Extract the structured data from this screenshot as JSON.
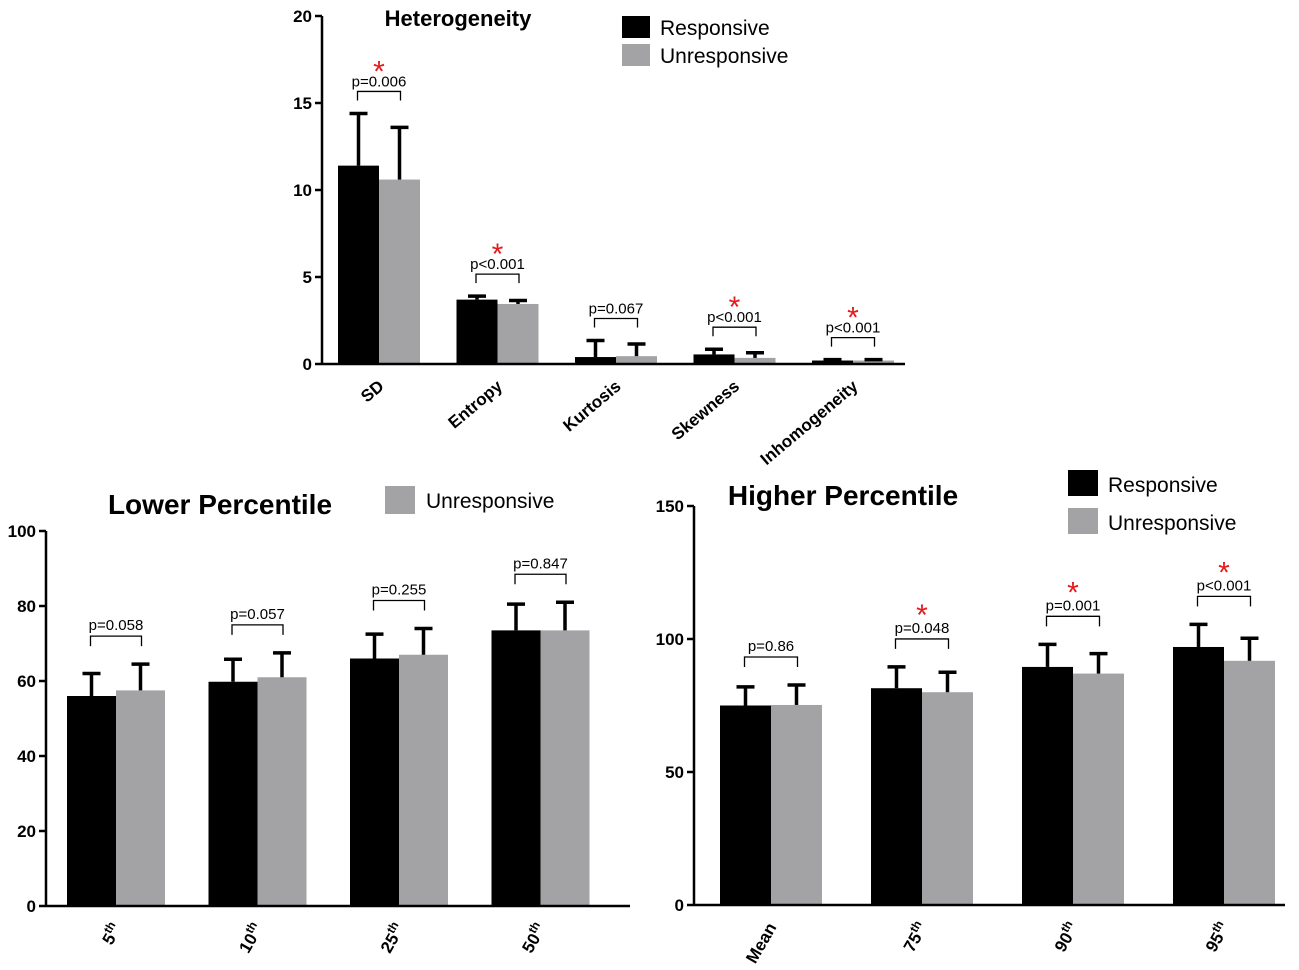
{
  "colors": {
    "responsive": "#000000",
    "unresponsive": "#a3a3a6",
    "significance": "#e41a1c"
  },
  "chart_data": [
    {
      "id": "heterogeneity",
      "type": "bar",
      "title": "Heterogeneity",
      "legend": [
        "Responsive",
        "Unresponsive"
      ],
      "legend_position": "top-right",
      "categories": [
        "SD",
        "Entropy",
        "Kurtosis",
        "Skewness",
        "Inhomogeneity"
      ],
      "ylim": [
        0,
        20
      ],
      "yticks": [
        "0",
        "5",
        "10",
        "15",
        "20"
      ],
      "series": [
        {
          "name": "Responsive",
          "values": [
            11.4,
            3.7,
            0.4,
            0.55,
            0.2
          ],
          "errors": [
            3.0,
            0.2,
            0.95,
            0.3,
            0.05
          ]
        },
        {
          "name": "Unresponsive",
          "values": [
            10.6,
            3.45,
            0.45,
            0.35,
            0.2
          ],
          "errors": [
            3.0,
            0.2,
            0.7,
            0.3,
            0.05
          ]
        }
      ],
      "annotations": [
        {
          "category": "SD",
          "label": "p=0.006",
          "significant": true
        },
        {
          "category": "Entropy",
          "label": "p<0.001",
          "significant": true
        },
        {
          "category": "Kurtosis",
          "label": "p=0.067",
          "significant": false
        },
        {
          "category": "Skewness",
          "label": "p<0.001",
          "significant": true
        },
        {
          "category": "Inhomogeneity",
          "label": "p<0.001",
          "significant": true
        }
      ],
      "star": "*"
    },
    {
      "id": "lower",
      "type": "bar",
      "title": "Lower Percentile",
      "legend": [
        "Unresponsive"
      ],
      "legend_position": "top-right",
      "categories": [
        "5",
        "10",
        "25",
        "50"
      ],
      "category_superscript": "th",
      "ylim": [
        0,
        100
      ],
      "yticks": [
        "0",
        "20",
        "40",
        "60",
        "80",
        "100"
      ],
      "series": [
        {
          "name": "Responsive",
          "values": [
            56,
            59.8,
            66,
            73.5
          ],
          "errors": [
            6,
            6,
            6.5,
            7
          ]
        },
        {
          "name": "Unresponsive",
          "values": [
            57.5,
            61,
            67,
            73.5
          ],
          "errors": [
            7,
            6.5,
            7,
            7.5
          ]
        }
      ],
      "annotations": [
        {
          "category": "5",
          "label": "p=0.058",
          "significant": false
        },
        {
          "category": "10",
          "label": "p=0.057",
          "significant": false
        },
        {
          "category": "25",
          "label": "p=0.255",
          "significant": false
        },
        {
          "category": "50",
          "label": "p=0.847",
          "significant": false
        }
      ]
    },
    {
      "id": "higher",
      "type": "bar",
      "title": "Higher Percentile",
      "legend": [
        "Responsive",
        "Unresponsive"
      ],
      "legend_position": "top-right",
      "categories": [
        "Mean",
        "75",
        "90",
        "95"
      ],
      "category_superscript": [
        "",
        "th",
        "th",
        "th"
      ],
      "ylim": [
        0,
        150
      ],
      "yticks": [
        "0",
        "50",
        "100",
        "150"
      ],
      "series": [
        {
          "name": "Responsive",
          "values": [
            75,
            81.5,
            89.5,
            97
          ],
          "errors": [
            7,
            8,
            8.5,
            8.5
          ]
        },
        {
          "name": "Unresponsive",
          "values": [
            75.2,
            80,
            87,
            91.8
          ],
          "errors": [
            7.5,
            7.5,
            7.5,
            8.5
          ]
        }
      ],
      "annotations": [
        {
          "category": "Mean",
          "label": "p=0.86",
          "significant": false
        },
        {
          "category": "75",
          "label": "p=0.048",
          "significant": true
        },
        {
          "category": "90",
          "label": "p=0.001",
          "significant": true
        },
        {
          "category": "95",
          "label": "p<0.001",
          "significant": true
        }
      ],
      "star": "*"
    }
  ]
}
